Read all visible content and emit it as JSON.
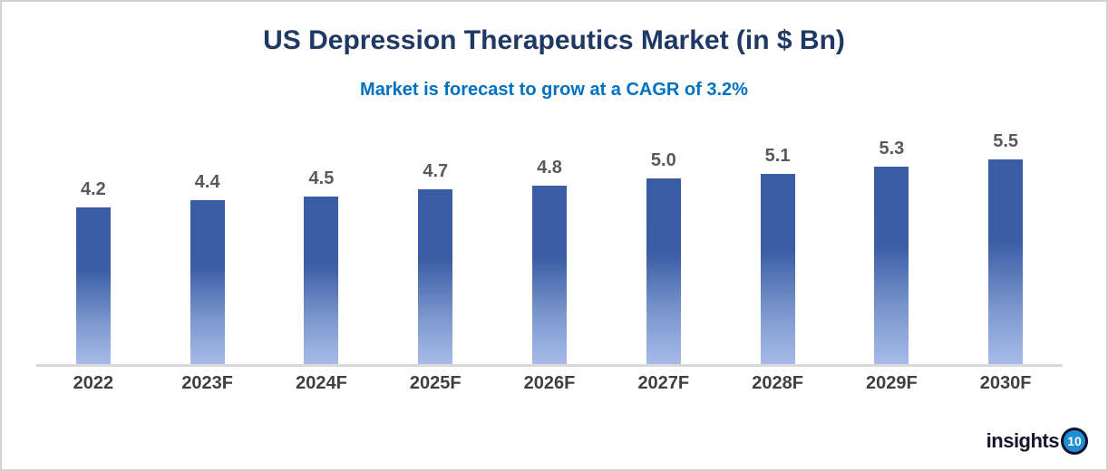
{
  "header": {
    "title": "US Depression Therapeutics Market (in $ Bn)",
    "subtitle": "Market is forecast to grow at a CAGR of 3.2%"
  },
  "chart_data": {
    "type": "bar",
    "title": "US Depression Therapeutics Market (in $ Bn)",
    "subtitle": "Market is forecast to grow at a CAGR of 3.2%",
    "categories": [
      "2022",
      "2023F",
      "2024F",
      "2025F",
      "2026F",
      "2027F",
      "2028F",
      "2029F",
      "2030F"
    ],
    "values": [
      4.2,
      4.4,
      4.5,
      4.7,
      4.8,
      5.0,
      5.1,
      5.3,
      5.5
    ],
    "data_labels": [
      "4.2",
      "4.4",
      "4.5",
      "4.7",
      "4.8",
      "5.0",
      "5.1",
      "5.3",
      "5.5"
    ],
    "xlabel": "",
    "ylabel": "",
    "y_axis_visible": false,
    "baseline": 0,
    "grid": false,
    "legend": false
  },
  "colors": {
    "title": "#1f3864",
    "subtitle": "#0070c0",
    "bar_gradient_top": "#3a5ca4",
    "bar_gradient_bottom": "#a6bbe8",
    "bar_border": "#ffffff",
    "value_label": "#595959",
    "category_label": "#3f3f3f",
    "axis_line": "#d9d9d9",
    "logo_text": "#15152b",
    "logo_badge_fill": "#1e8fd0",
    "frame_border": "#d2d2d2"
  },
  "logo": {
    "text": "insights",
    "badge": "10"
  }
}
